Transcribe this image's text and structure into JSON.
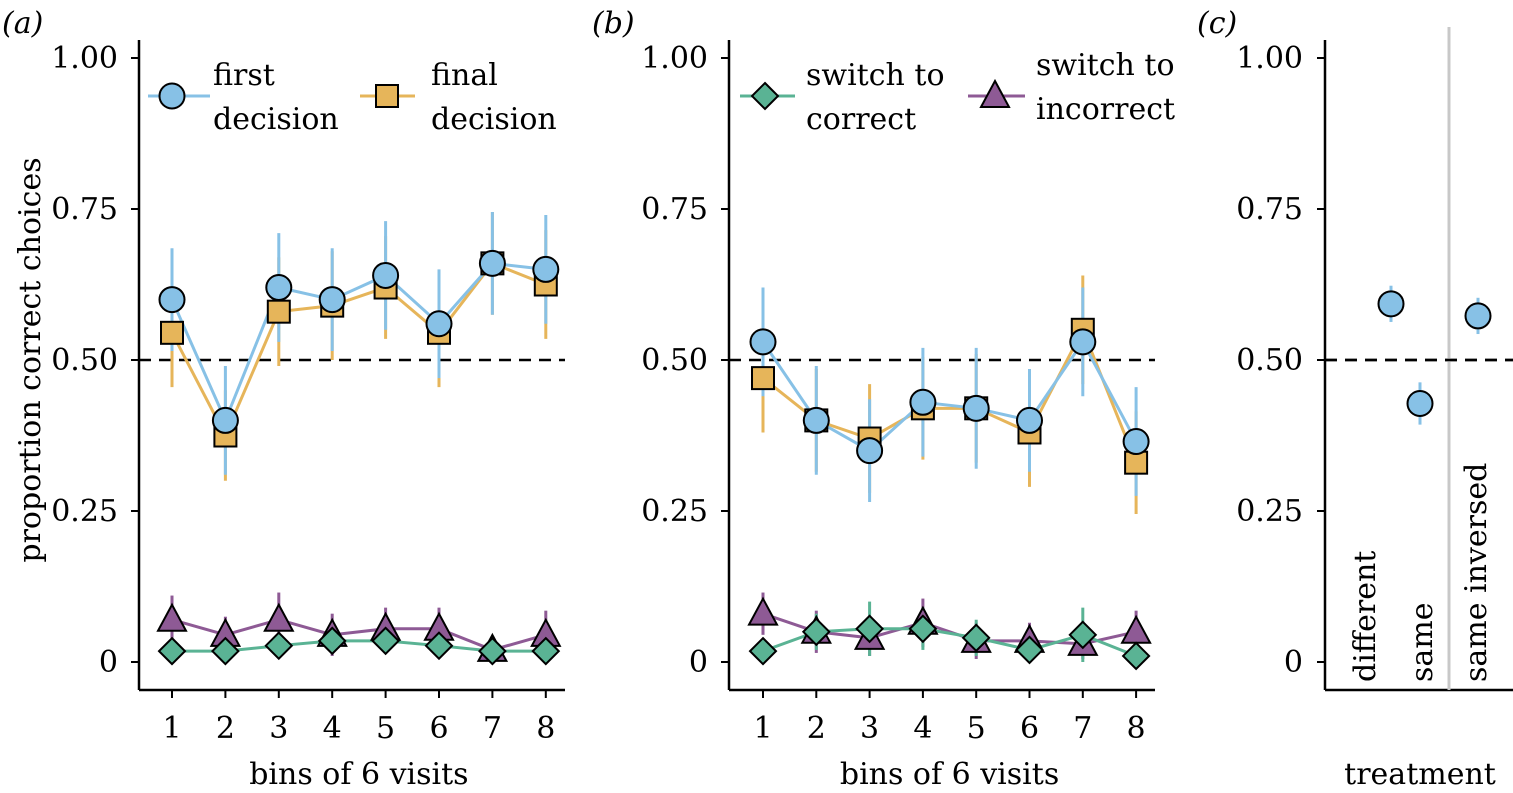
{
  "chart_data": [
    {
      "panel_label": "(a)",
      "type": "line",
      "xlabel": "bins of 6 visits",
      "ylabel": "proportion correct choices",
      "x": [
        1,
        2,
        3,
        4,
        5,
        6,
        7,
        8
      ],
      "ylim": [
        0,
        1.0
      ],
      "yticks": [
        0,
        0.25,
        0.5,
        0.75,
        1.0
      ],
      "yticklabels": [
        "0",
        "0.25",
        "0.50",
        "0.75",
        "1.00"
      ],
      "reference_line": 0.5,
      "legend": [
        {
          "key": "first",
          "marker": "circle",
          "color": "#87c1e6",
          "lines": [
            "first",
            "decision"
          ]
        },
        {
          "key": "final",
          "marker": "square",
          "color": "#e6b55a",
          "lines": [
            "final",
            "decision"
          ]
        }
      ],
      "series": [
        {
          "name": "first decision",
          "marker": "circle",
          "color": "#87c1e6",
          "values": [
            0.6,
            0.4,
            0.62,
            0.6,
            0.64,
            0.56,
            0.66,
            0.65
          ],
          "err": [
            0.085,
            0.09,
            0.09,
            0.085,
            0.09,
            0.09,
            0.085,
            0.09
          ]
        },
        {
          "name": "final decision",
          "marker": "square",
          "color": "#e6b55a",
          "values": [
            0.545,
            0.375,
            0.58,
            0.59,
            0.62,
            0.545,
            0.66,
            0.625
          ],
          "err": [
            0.09,
            0.075,
            0.09,
            0.09,
            0.085,
            0.09,
            0.085,
            0.09
          ]
        },
        {
          "name": "switch to correct",
          "marker": "diamond",
          "color": "#5ab394",
          "values": [
            0.018,
            0.018,
            0.027,
            0.035,
            0.035,
            0.027,
            0.018,
            0.018
          ],
          "err": [
            0.0,
            0.015,
            0.02,
            0.02,
            0.02,
            0.02,
            0.02,
            0.0
          ]
        },
        {
          "name": "switch to incorrect",
          "marker": "triangle",
          "color": "#8e5a95",
          "values": [
            0.07,
            0.045,
            0.07,
            0.045,
            0.055,
            0.055,
            0.02,
            0.045
          ],
          "err": [
            0.04,
            0.03,
            0.045,
            0.035,
            0.035,
            0.035,
            0.02,
            0.04
          ]
        }
      ]
    },
    {
      "panel_label": "(b)",
      "type": "line",
      "xlabel": "bins of 6 visits",
      "x": [
        1,
        2,
        3,
        4,
        5,
        6,
        7,
        8
      ],
      "ylim": [
        0,
        1.0
      ],
      "yticks": [
        0,
        0.25,
        0.5,
        0.75,
        1.0
      ],
      "yticklabels": [
        "0",
        "0.25",
        "0.50",
        "0.75",
        "1.00"
      ],
      "reference_line": 0.5,
      "legend": [
        {
          "key": "to_correct",
          "marker": "diamond",
          "color": "#5ab394",
          "lines": [
            "switch to",
            "correct"
          ]
        },
        {
          "key": "to_incorrect",
          "marker": "triangle",
          "color": "#8e5a95",
          "lines": [
            "switch to",
            "incorrect"
          ]
        }
      ],
      "series": [
        {
          "name": "first decision",
          "marker": "circle",
          "color": "#87c1e6",
          "values": [
            0.53,
            0.4,
            0.35,
            0.43,
            0.42,
            0.4,
            0.53,
            0.365
          ],
          "err": [
            0.09,
            0.09,
            0.085,
            0.09,
            0.1,
            0.085,
            0.09,
            0.09
          ]
        },
        {
          "name": "final decision",
          "marker": "square",
          "color": "#e6b55a",
          "values": [
            0.47,
            0.4,
            0.37,
            0.42,
            0.42,
            0.38,
            0.55,
            0.33
          ],
          "err": [
            0.09,
            0.085,
            0.09,
            0.085,
            0.09,
            0.09,
            0.09,
            0.085
          ]
        },
        {
          "name": "switch to correct",
          "marker": "diamond",
          "color": "#5ab394",
          "values": [
            0.018,
            0.05,
            0.055,
            0.055,
            0.04,
            0.02,
            0.045,
            0.01
          ],
          "err": [
            0.0,
            0.03,
            0.045,
            0.035,
            0.03,
            0.02,
            0.045,
            0.0
          ]
        },
        {
          "name": "switch to incorrect",
          "marker": "triangle",
          "color": "#8e5a95",
          "values": [
            0.08,
            0.05,
            0.04,
            0.065,
            0.035,
            0.035,
            0.03,
            0.05
          ],
          "err": [
            0.035,
            0.035,
            0.03,
            0.04,
            0.03,
            0.03,
            0.025,
            0.035
          ]
        }
      ]
    },
    {
      "panel_label": "(c)",
      "type": "scatter",
      "xlabel": "treatment",
      "categories": [
        "different",
        "same",
        "same inversed"
      ],
      "ylim": [
        0,
        1.0
      ],
      "yticks": [
        0,
        0.25,
        0.5,
        0.75,
        1.0
      ],
      "yticklabels": [
        "0",
        "0.25",
        "0.50",
        "0.75",
        "1.00"
      ],
      "reference_line": 0.5,
      "series": [
        {
          "marker": "circle",
          "color": "#87c1e6",
          "values": [
            0.593,
            0.428,
            0.573
          ],
          "err": [
            0.03,
            0.035,
            0.03
          ]
        }
      ]
    }
  ]
}
